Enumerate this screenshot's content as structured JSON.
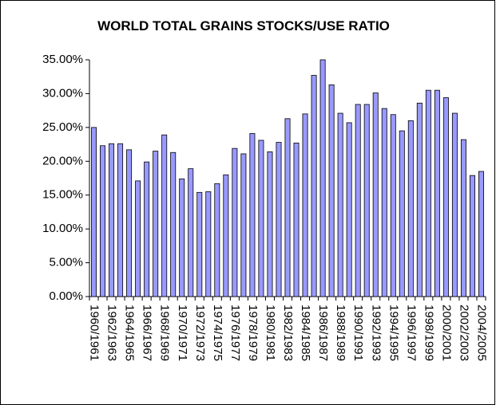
{
  "chart_data": {
    "type": "bar",
    "title": "WORLD TOTAL GRAINS STOCKS/USE RATIO",
    "categories": [
      "1960/1961",
      null,
      "1962/1963",
      null,
      "1964/1965",
      null,
      "1966/1967",
      null,
      "1968/1969",
      null,
      "1970/1971",
      null,
      "1972/1973",
      null,
      "1974/1975",
      null,
      "1976/1977",
      null,
      "1978/1979",
      null,
      "1980/1981",
      null,
      "1982/1983",
      null,
      "1984/1985",
      null,
      "1986/1987",
      null,
      "1988/1989",
      null,
      "1990/1991",
      null,
      "1992/1993",
      null,
      "1994/1995",
      null,
      "1996/1997",
      null,
      "1998/1999",
      null,
      "2000/2001",
      null,
      "2002/2003",
      null,
      "2004/2005"
    ],
    "values": [
      25.0,
      22.3,
      22.6,
      22.6,
      21.7,
      17.1,
      19.9,
      21.5,
      23.9,
      21.3,
      17.4,
      18.9,
      15.4,
      15.5,
      16.7,
      18.0,
      21.9,
      21.1,
      24.1,
      23.1,
      21.4,
      22.8,
      26.3,
      22.7,
      27.0,
      32.7,
      35.0,
      31.3,
      27.1,
      25.7,
      28.4,
      28.4,
      30.1,
      27.8,
      26.9,
      24.5,
      26.0,
      28.6,
      30.5,
      30.5,
      29.4,
      27.1,
      23.2,
      17.9,
      18.5
    ],
    "color": "#9999ff",
    "ylim": [
      0,
      35
    ],
    "yticks": [
      {
        "value": 0,
        "label": "0.00%"
      },
      {
        "value": 5,
        "label": "5.00%"
      },
      {
        "value": 10,
        "label": "10.00%"
      },
      {
        "value": 15,
        "label": "15.00%"
      },
      {
        "value": 20,
        "label": "20.00%"
      },
      {
        "value": 25,
        "label": "25.00%"
      },
      {
        "value": 30,
        "label": "30.00%"
      },
      {
        "value": 35,
        "label": "35.00%"
      }
    ],
    "grid": false
  }
}
